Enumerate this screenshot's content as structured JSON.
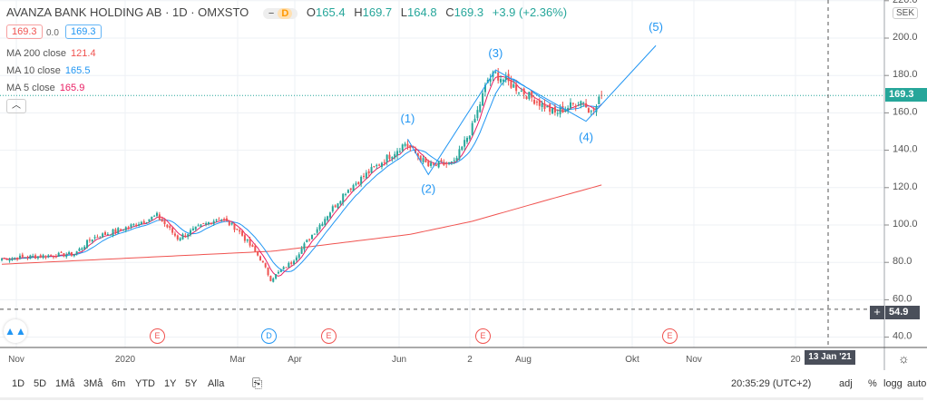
{
  "header": {
    "title": "AVANZA BANK HOLDING AB · 1D · OMXSTO",
    "market_minus": "−",
    "market_status": "D",
    "open": "O",
    "open_val": "165.4",
    "high": "H",
    "high_val": "169.7",
    "low": "L",
    "low_val": "164.8",
    "close": "C",
    "close_val": "169.3",
    "change": "+3.9 (+2.36%)"
  },
  "quote": {
    "bid": "169.3",
    "spread": "0.0",
    "ask": "169.3"
  },
  "indicators": [
    {
      "label": "MA 200 close",
      "value": "121.4",
      "color": "#f05350"
    },
    {
      "label": "MA 10 close",
      "value": "165.5",
      "color": "#2196f3"
    },
    {
      "label": "MA 5 close",
      "value": "165.9",
      "color": "#e91e63"
    }
  ],
  "collapse_icon": "chevron-up-icon",
  "price_axis": {
    "currency": "SEK",
    "last_price": "169.3",
    "crosshair_price": "54.9"
  },
  "time_axis": {
    "crosshair_date": "13 Jan '21"
  },
  "events": [
    {
      "t": "E",
      "color": "#f05350"
    },
    {
      "t": "D",
      "color": "#2196f3"
    },
    {
      "t": "E",
      "color": "#f05350"
    },
    {
      "t": "E",
      "color": "#f05350"
    },
    {
      "t": "E",
      "color": "#f05350"
    }
  ],
  "bottom": {
    "ranges": [
      "1D",
      "5D",
      "1Må",
      "3Må",
      "6m",
      "YTD",
      "1Y",
      "5Y",
      "Alla"
    ],
    "time": "20:35:29 (UTC+2)",
    "adj": "adj",
    "pct": "%",
    "log": "logg",
    "auto": "auto"
  },
  "chart_data": {
    "type": "candlestick",
    "title": "AVANZA BANK HOLDING AB · 1D · OMXSTO",
    "ylim": [
      35,
      222
    ],
    "yticks": [
      40,
      60,
      80,
      100,
      120,
      140,
      160,
      180,
      200,
      220
    ],
    "xticks": [
      "Nov",
      "2020",
      "Mar",
      "Apr",
      "Jun",
      "2",
      "Aug",
      "Okt",
      "Nov",
      "20"
    ],
    "close_anchors": [
      [
        0,
        82
      ],
      [
        28,
        84.5
      ],
      [
        35,
        93
      ],
      [
        49,
        99
      ],
      [
        60,
        105
      ],
      [
        68,
        93
      ],
      [
        84,
        104
      ],
      [
        91,
        98
      ],
      [
        100,
        82
      ],
      [
        104,
        71
      ],
      [
        112,
        80
      ],
      [
        121,
        96.6
      ],
      [
        133,
        118
      ],
      [
        144,
        130.5
      ],
      [
        156,
        143.7
      ],
      [
        165,
        131.5
      ],
      [
        175,
        133
      ],
      [
        182,
        152.4
      ],
      [
        188,
        177.7
      ],
      [
        191,
        180.6
      ],
      [
        204,
        169
      ],
      [
        214,
        159.7
      ],
      [
        225,
        167
      ],
      [
        227,
        160
      ],
      [
        232,
        169.3
      ]
    ],
    "ma200_anchors": [
      [
        0,
        79
      ],
      [
        105,
        86
      ],
      [
        158,
        95
      ],
      [
        182,
        102
      ],
      [
        210,
        113
      ],
      [
        232,
        121.4
      ]
    ],
    "waves": [
      {
        "label": "(1)",
        "day": 157,
        "price": 146
      },
      {
        "label": "(2)",
        "day": 165,
        "price": 127
      },
      {
        "label": "(3)",
        "day": 191,
        "price": 183
      },
      {
        "label": "(4)",
        "day": 226,
        "price": 155.5
      },
      {
        "label": "(5)",
        "day": 253,
        "price": 196
      }
    ],
    "last_price": 169.3,
    "crosshair_price": 54.9
  }
}
